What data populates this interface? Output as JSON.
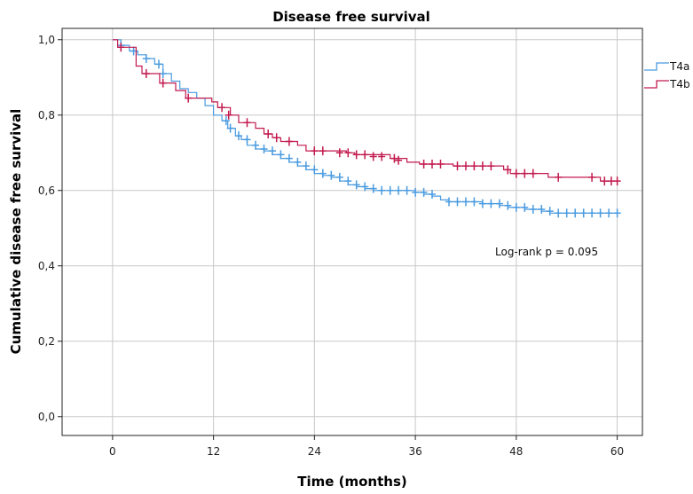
{
  "chart_data": {
    "type": "line",
    "title": "Disease free survival",
    "xlabel": "Time (months)",
    "ylabel": "Cumulative disease free survival",
    "xlim": [
      -6,
      63
    ],
    "ylim": [
      -0.05,
      1.03
    ],
    "xticks": [
      0,
      12,
      24,
      36,
      48,
      60
    ],
    "xtick_labels": [
      "0",
      "12",
      "24",
      "36",
      "48",
      "60"
    ],
    "yticks": [
      0.0,
      0.2,
      0.4,
      0.6,
      0.8,
      1.0
    ],
    "ytick_labels": [
      "0,0",
      "0,2",
      "0,4",
      "0,6",
      "0,8",
      "1,0"
    ],
    "grid": true,
    "legend_position": "top-right",
    "annotation": "Log-rank p  =  0.095",
    "series": [
      {
        "name": "T4a",
        "color": "#4a9be0",
        "steps": [
          [
            0,
            1.0
          ],
          [
            1,
            0.985
          ],
          [
            2,
            0.97
          ],
          [
            3,
            0.96
          ],
          [
            4,
            0.95
          ],
          [
            5,
            0.935
          ],
          [
            6,
            0.91
          ],
          [
            7,
            0.89
          ],
          [
            8,
            0.87
          ],
          [
            9,
            0.86
          ],
          [
            10,
            0.845
          ],
          [
            11,
            0.825
          ],
          [
            12,
            0.8
          ],
          [
            13,
            0.785
          ],
          [
            13.7,
            0.765
          ],
          [
            14.6,
            0.745
          ],
          [
            15.3,
            0.735
          ],
          [
            16,
            0.72
          ],
          [
            17,
            0.71
          ],
          [
            18,
            0.705
          ],
          [
            19,
            0.695
          ],
          [
            20,
            0.685
          ],
          [
            21,
            0.675
          ],
          [
            22,
            0.665
          ],
          [
            23,
            0.655
          ],
          [
            24,
            0.645
          ],
          [
            25,
            0.64
          ],
          [
            26,
            0.635
          ],
          [
            27,
            0.625
          ],
          [
            28,
            0.615
          ],
          [
            29,
            0.61
          ],
          [
            30,
            0.605
          ],
          [
            31,
            0.6
          ],
          [
            36,
            0.595
          ],
          [
            37,
            0.59
          ],
          [
            38,
            0.585
          ],
          [
            39,
            0.575
          ],
          [
            40,
            0.57
          ],
          [
            44,
            0.565
          ],
          [
            46,
            0.56
          ],
          [
            47,
            0.555
          ],
          [
            49,
            0.55
          ],
          [
            51,
            0.545
          ],
          [
            52,
            0.54
          ],
          [
            60,
            0.54
          ]
        ],
        "censors": [
          [
            1,
            0.985
          ],
          [
            2.5,
            0.97
          ],
          [
            4,
            0.95
          ],
          [
            5.5,
            0.935
          ],
          [
            6,
            0.91
          ],
          [
            13.5,
            0.785
          ],
          [
            14,
            0.765
          ],
          [
            15,
            0.745
          ],
          [
            16,
            0.735
          ],
          [
            17,
            0.72
          ],
          [
            18,
            0.71
          ],
          [
            19,
            0.705
          ],
          [
            20,
            0.695
          ],
          [
            21,
            0.685
          ],
          [
            22,
            0.675
          ],
          [
            23,
            0.665
          ],
          [
            24,
            0.655
          ],
          [
            25,
            0.645
          ],
          [
            26,
            0.64
          ],
          [
            27,
            0.635
          ],
          [
            28,
            0.625
          ],
          [
            29,
            0.615
          ],
          [
            30,
            0.61
          ],
          [
            31,
            0.605
          ],
          [
            32,
            0.6
          ],
          [
            33,
            0.6
          ],
          [
            34,
            0.6
          ],
          [
            35,
            0.6
          ],
          [
            36,
            0.595
          ],
          [
            37,
            0.595
          ],
          [
            38,
            0.59
          ],
          [
            40,
            0.57
          ],
          [
            41,
            0.57
          ],
          [
            42,
            0.57
          ],
          [
            43,
            0.57
          ],
          [
            44,
            0.565
          ],
          [
            45,
            0.565
          ],
          [
            46,
            0.565
          ],
          [
            47,
            0.56
          ],
          [
            48,
            0.555
          ],
          [
            49,
            0.555
          ],
          [
            50,
            0.55
          ],
          [
            51,
            0.55
          ],
          [
            52,
            0.545
          ],
          [
            53,
            0.54
          ],
          [
            54,
            0.54
          ],
          [
            55,
            0.54
          ],
          [
            56,
            0.54
          ],
          [
            57,
            0.54
          ],
          [
            58,
            0.54
          ],
          [
            59,
            0.54
          ],
          [
            60,
            0.54
          ]
        ]
      },
      {
        "name": "T4b",
        "color": "#c21a4f",
        "steps": [
          [
            0,
            1.0
          ],
          [
            0.6,
            0.98
          ],
          [
            2.8,
            0.93
          ],
          [
            3.5,
            0.91
          ],
          [
            5.6,
            0.885
          ],
          [
            7.5,
            0.865
          ],
          [
            8.7,
            0.845
          ],
          [
            11.8,
            0.835
          ],
          [
            12.5,
            0.82
          ],
          [
            14,
            0.8
          ],
          [
            15,
            0.78
          ],
          [
            17,
            0.765
          ],
          [
            18,
            0.75
          ],
          [
            19,
            0.74
          ],
          [
            20,
            0.73
          ],
          [
            22,
            0.72
          ],
          [
            23,
            0.705
          ],
          [
            27.8,
            0.7
          ],
          [
            28.8,
            0.695
          ],
          [
            33,
            0.685
          ],
          [
            35,
            0.675
          ],
          [
            36.5,
            0.67
          ],
          [
            40.5,
            0.665
          ],
          [
            46.5,
            0.655
          ],
          [
            47.3,
            0.645
          ],
          [
            51.8,
            0.635
          ],
          [
            58,
            0.625
          ],
          [
            60,
            0.625
          ]
        ],
        "censors": [
          [
            1,
            0.98
          ],
          [
            4,
            0.91
          ],
          [
            6,
            0.885
          ],
          [
            9,
            0.845
          ],
          [
            13,
            0.82
          ],
          [
            13.8,
            0.8
          ],
          [
            16,
            0.78
          ],
          [
            18.5,
            0.75
          ],
          [
            19.5,
            0.74
          ],
          [
            21,
            0.73
          ],
          [
            24,
            0.705
          ],
          [
            25,
            0.705
          ],
          [
            27,
            0.7
          ],
          [
            28,
            0.7
          ],
          [
            29,
            0.695
          ],
          [
            30,
            0.695
          ],
          [
            31,
            0.69
          ],
          [
            32,
            0.69
          ],
          [
            33.5,
            0.685
          ],
          [
            34,
            0.68
          ],
          [
            37,
            0.67
          ],
          [
            38,
            0.67
          ],
          [
            39,
            0.67
          ],
          [
            41,
            0.665
          ],
          [
            42,
            0.665
          ],
          [
            43,
            0.665
          ],
          [
            44,
            0.665
          ],
          [
            45,
            0.665
          ],
          [
            47,
            0.655
          ],
          [
            48,
            0.645
          ],
          [
            49,
            0.645
          ],
          [
            50,
            0.645
          ],
          [
            53,
            0.635
          ],
          [
            57,
            0.635
          ],
          [
            58.5,
            0.625
          ],
          [
            59.3,
            0.625
          ],
          [
            60,
            0.625
          ]
        ]
      }
    ]
  }
}
